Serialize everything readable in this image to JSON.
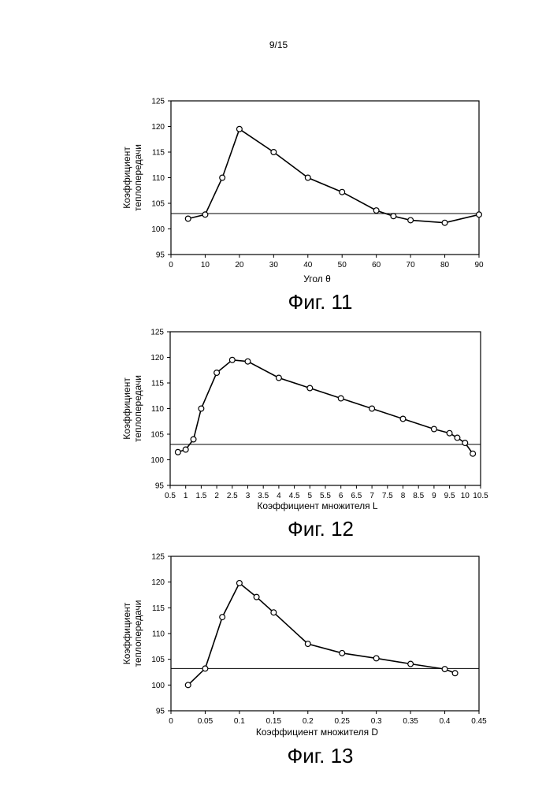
{
  "page": {
    "number": "9/15"
  },
  "chart_data": [
    {
      "type": "line",
      "figure_label": "Фиг. 11",
      "xlabel": "Угол θ",
      "ylabel_lines": [
        "Коэффициент",
        "теплопередачи"
      ],
      "xlim": [
        0,
        90
      ],
      "ylim": [
        95,
        125
      ],
      "xticks": [
        "0",
        "10",
        "20",
        "30",
        "40",
        "50",
        "60",
        "70",
        "80",
        "90"
      ],
      "xtick_values": [
        0,
        10,
        20,
        30,
        40,
        50,
        60,
        70,
        80,
        90
      ],
      "yticks": [
        "95",
        "100",
        "105",
        "110",
        "115",
        "120",
        "125"
      ],
      "ytick_values": [
        95,
        100,
        105,
        110,
        115,
        120,
        125
      ],
      "reference_line": 103,
      "series": [
        {
          "name": "Коэффициент теплопередачи",
          "x": [
            5,
            10,
            15,
            20,
            30,
            40,
            50,
            60,
            65,
            70,
            80,
            90
          ],
          "y": [
            102.0,
            102.8,
            110.0,
            119.5,
            115.0,
            110.0,
            107.2,
            103.6,
            102.5,
            101.7,
            101.2,
            102.8
          ]
        }
      ]
    },
    {
      "type": "line",
      "figure_label": "Фиг. 12",
      "xlabel": "Коэффициент множителя L",
      "ylabel_lines": [
        "Коэффициент",
        "теплопередачи"
      ],
      "xlim": [
        0.5,
        10.5
      ],
      "ylim": [
        95,
        125
      ],
      "xticks": [
        "0.5",
        "1",
        "1.5",
        "2",
        "2.5",
        "3",
        "3.5",
        "4",
        "4.5",
        "5",
        "5.5",
        "6",
        "6.5",
        "7",
        "7.5",
        "8",
        "8.5",
        "9",
        "9.5",
        "10",
        "10.5"
      ],
      "xtick_values": [
        0.5,
        1,
        1.5,
        2,
        2.5,
        3,
        3.5,
        4,
        4.5,
        5,
        5.5,
        6,
        6.5,
        7,
        7.5,
        8,
        8.5,
        9,
        9.5,
        10,
        10.5
      ],
      "yticks": [
        "95",
        "100",
        "105",
        "110",
        "115",
        "120",
        "125"
      ],
      "ytick_values": [
        95,
        100,
        105,
        110,
        115,
        120,
        125
      ],
      "reference_line": 103,
      "series": [
        {
          "name": "Коэффициент теплопередачи",
          "x": [
            0.75,
            1.0,
            1.25,
            1.5,
            2.0,
            2.5,
            3.0,
            4.0,
            5.0,
            6.0,
            7.0,
            8.0,
            9.0,
            9.5,
            9.75,
            10.0,
            10.25
          ],
          "y": [
            101.5,
            102.0,
            104.0,
            110.0,
            117.0,
            119.5,
            119.2,
            116.0,
            114.0,
            112.0,
            110.0,
            108.0,
            106.0,
            105.2,
            104.3,
            103.3,
            101.2
          ]
        }
      ]
    },
    {
      "type": "line",
      "figure_label": "Фиг. 13",
      "xlabel": "Коэффициент множителя D",
      "ylabel_lines": [
        "Коэффициент",
        "теплопередачи"
      ],
      "xlim": [
        0,
        0.45
      ],
      "ylim": [
        95,
        125
      ],
      "xticks": [
        "0",
        "0.05",
        "0.1",
        "0.15",
        "0.2",
        "0.25",
        "0.3",
        "0.35",
        "0.4",
        "0.45"
      ],
      "xtick_values": [
        0,
        0.05,
        0.1,
        0.15,
        0.2,
        0.25,
        0.3,
        0.35,
        0.4,
        0.45
      ],
      "yticks": [
        "95",
        "100",
        "105",
        "110",
        "115",
        "120",
        "125"
      ],
      "ytick_values": [
        95,
        100,
        105,
        110,
        115,
        120,
        125
      ],
      "reference_line": 103.2,
      "series": [
        {
          "name": "Коэффициент теплопередачи",
          "x": [
            0.025,
            0.05,
            0.075,
            0.1,
            0.125,
            0.15,
            0.2,
            0.25,
            0.3,
            0.35,
            0.4,
            0.415
          ],
          "y": [
            100.0,
            103.2,
            113.2,
            119.8,
            117.1,
            114.1,
            108.0,
            106.2,
            105.2,
            104.1,
            103.1,
            102.3
          ]
        }
      ]
    }
  ]
}
